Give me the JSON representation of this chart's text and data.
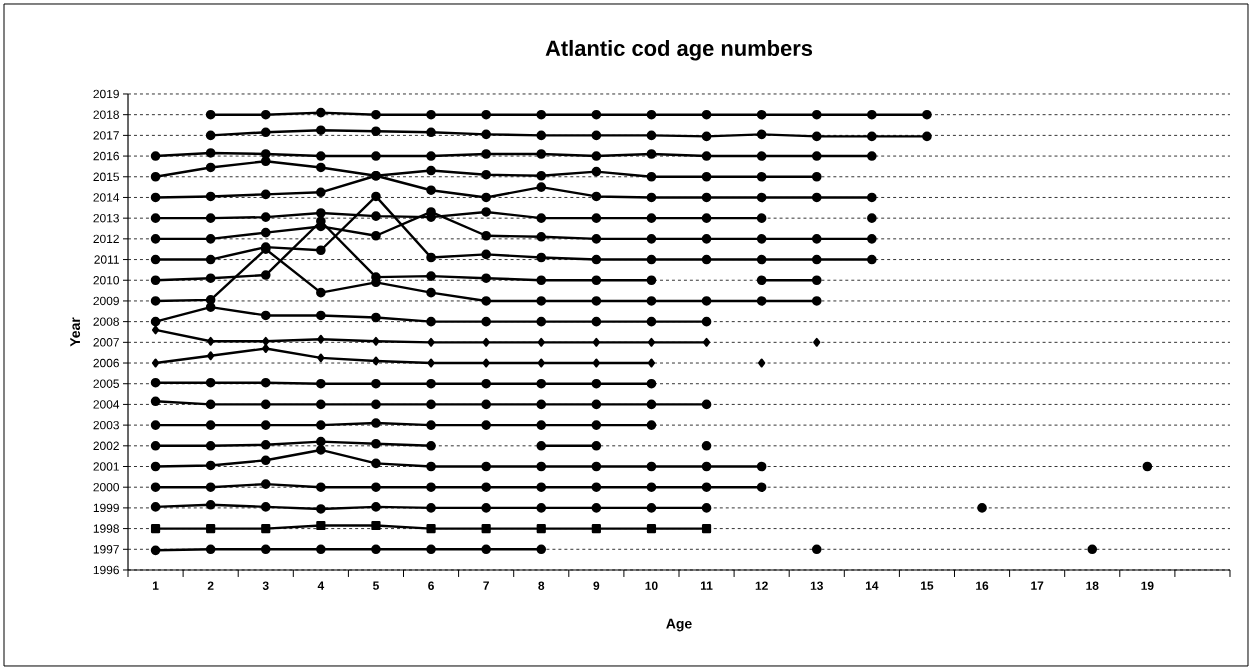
{
  "chart_data": {
    "type": "line",
    "title": "Atlantic cod age numbers",
    "xlabel": "Age",
    "ylabel": "Year",
    "categories": [
      "1",
      "2",
      "3",
      "4",
      "5",
      "6",
      "7",
      "8",
      "9",
      "10",
      "11",
      "12",
      "13",
      "14",
      "15",
      "16",
      "17",
      "18",
      "19",
      null
    ],
    "ylim": [
      1996,
      2019
    ],
    "yticks": [
      1996,
      1997,
      1998,
      1999,
      2000,
      2001,
      2002,
      2003,
      2004,
      2005,
      2006,
      2007,
      2008,
      2009,
      2010,
      2011,
      2012,
      2013,
      2014,
      2015,
      2016,
      2017,
      2018,
      2019
    ],
    "grid": "y",
    "line_style": "solid",
    "series": [
      {
        "color": "#000000",
        "marker": "circle",
        "values": [
          1996.95,
          1997,
          1997,
          1997,
          1997,
          1997,
          1997,
          1997,
          null,
          null,
          null,
          null,
          1997,
          null,
          null,
          null,
          null,
          1997,
          null,
          null
        ]
      },
      {
        "color": "#000000",
        "marker": "square",
        "values": [
          1998,
          1998,
          1998,
          1998.15,
          1998.15,
          1998,
          1998,
          1998,
          1998,
          1998,
          1998,
          null,
          null,
          null,
          null,
          null,
          null,
          null,
          null,
          null
        ]
      },
      {
        "color": "#000000",
        "marker": "circle",
        "values": [
          1999.05,
          1999.15,
          1999.05,
          1998.95,
          1999.05,
          1999,
          1999,
          1999,
          1999,
          1999,
          1999,
          null,
          null,
          null,
          null,
          1999,
          null,
          null,
          null,
          null
        ]
      },
      {
        "color": "#000000",
        "marker": "circle",
        "values": [
          2000,
          2000,
          2000.15,
          2000,
          2000,
          2000,
          2000,
          2000,
          2000,
          2000,
          2000,
          2000,
          null,
          null,
          null,
          null,
          null,
          null,
          null,
          null
        ]
      },
      {
        "color": "#000000",
        "marker": "circle",
        "values": [
          2001,
          2001.05,
          2001.3,
          2001.8,
          2001.15,
          2001,
          2001,
          2001,
          2001,
          2001,
          2001,
          2001,
          null,
          null,
          null,
          null,
          null,
          null,
          2001,
          null
        ]
      },
      {
        "color": "#000000",
        "marker": "circle",
        "values": [
          2002,
          2002,
          2002.05,
          2002.2,
          2002.1,
          2002,
          null,
          2002,
          2002,
          null,
          2002,
          null,
          null,
          null,
          null,
          null,
          null,
          null,
          null,
          null
        ]
      },
      {
        "color": "#000000",
        "marker": "circle",
        "values": [
          2003,
          2003,
          2003,
          2003,
          2003.1,
          2003,
          2003,
          2003,
          2003,
          2003,
          null,
          null,
          null,
          null,
          null,
          null,
          null,
          null,
          null,
          null
        ]
      },
      {
        "color": "#000000",
        "marker": "circle",
        "values": [
          2004.15,
          2004,
          2004,
          2004,
          2004,
          2004,
          2004,
          2004,
          2004,
          2004,
          2004,
          null,
          null,
          null,
          null,
          null,
          null,
          null,
          null,
          null
        ]
      },
      {
        "color": "#000000",
        "marker": "circle",
        "values": [
          2005.05,
          2005.05,
          2005.05,
          2005,
          2005,
          2005,
          2005,
          2005,
          2005,
          2005,
          null,
          null,
          null,
          null,
          null,
          null,
          null,
          null,
          null,
          null
        ]
      },
      {
        "color": "#000000",
        "marker": "diamond",
        "values": [
          2006,
          2006.35,
          2006.7,
          2006.25,
          2006.1,
          2006,
          2006,
          2006,
          2006,
          2006,
          null,
          2006,
          null,
          null,
          null,
          null,
          null,
          null,
          null,
          null
        ]
      },
      {
        "color": "#000000",
        "marker": "diamond",
        "values": [
          2007.6,
          2007.05,
          2007.05,
          2007.15,
          2007.05,
          2007,
          2007,
          2007,
          2007,
          2007,
          2007,
          null,
          2007,
          null,
          null,
          null,
          null,
          null,
          null,
          null
        ]
      },
      {
        "color": "#000000",
        "marker": "circle",
        "values": [
          2008,
          2008.7,
          2008.3,
          2008.3,
          2008.2,
          2008,
          2008,
          2008,
          2008,
          2008,
          2008,
          null,
          null,
          null,
          null,
          null,
          null,
          null,
          null,
          null
        ]
      },
      {
        "color": "#000000",
        "marker": "circle",
        "values": [
          2009,
          2009.05,
          2011.5,
          2009.4,
          2009.9,
          2009.4,
          2009,
          2009,
          2009,
          2009,
          2009,
          2009,
          2009,
          null,
          null,
          null,
          null,
          null,
          null,
          null
        ]
      },
      {
        "color": "#000000",
        "marker": "circle",
        "values": [
          2010,
          2010.1,
          2010.25,
          2012.85,
          2010.15,
          2010.2,
          2010.1,
          2010,
          2010,
          2010,
          null,
          2010,
          2010,
          null,
          null,
          null,
          null,
          null,
          null,
          null
        ]
      },
      {
        "color": "#000000",
        "marker": "circle",
        "values": [
          2011,
          2011,
          2011.6,
          2011.45,
          2014.05,
          2011.1,
          2011.25,
          2011.1,
          2011,
          2011,
          2011,
          2011,
          2011,
          2011,
          null,
          null,
          null,
          null,
          null,
          null
        ]
      },
      {
        "color": "#000000",
        "marker": "circle",
        "values": [
          2012,
          2012,
          2012.3,
          2012.6,
          2012.15,
          2013.3,
          2012.15,
          2012.1,
          2012,
          2012,
          2012,
          2012,
          2012,
          2012,
          null,
          null,
          null,
          null,
          null,
          null
        ]
      },
      {
        "color": "#000000",
        "marker": "circle",
        "values": [
          2013,
          2013,
          2013.05,
          2013.25,
          2013.1,
          2013.05,
          2013.3,
          2013,
          2013,
          2013,
          2013,
          2013,
          null,
          2013,
          null,
          null,
          null,
          null,
          null,
          null
        ]
      },
      {
        "color": "#000000",
        "marker": "circle",
        "values": [
          2014,
          2014.05,
          2014.15,
          2014.25,
          2015.05,
          2014.35,
          2014,
          2014.5,
          2014.05,
          2014,
          2014,
          2014,
          2014,
          2014,
          null,
          null,
          null,
          null,
          null,
          null
        ]
      },
      {
        "color": "#000000",
        "marker": "circle",
        "values": [
          2015,
          2015.45,
          2015.75,
          2015.45,
          2015.05,
          2015.3,
          2015.1,
          2015.05,
          2015.25,
          2015,
          2015,
          2015,
          2015,
          null,
          null,
          null,
          null,
          null,
          null,
          null
        ]
      },
      {
        "color": "#000000",
        "marker": "circle",
        "values": [
          2016,
          2016.15,
          2016.1,
          2016,
          2016,
          2016,
          2016.1,
          2016.1,
          2016,
          2016.1,
          2016,
          2016,
          2016,
          2016,
          null,
          null,
          null,
          null,
          null,
          null
        ]
      },
      {
        "color": "#000000",
        "marker": "circle",
        "values": [
          null,
          2017,
          2017.15,
          2017.25,
          2017.2,
          2017.15,
          2017.05,
          2017,
          2017,
          2017,
          2016.95,
          2017.05,
          2016.95,
          2016.95,
          2016.95,
          null,
          null,
          null,
          null,
          null
        ]
      },
      {
        "color": "#000000",
        "marker": "circle",
        "values": [
          null,
          2018,
          2018,
          2018.1,
          2018,
          2018,
          2018,
          2018,
          2018,
          2018,
          2018,
          2018,
          2018,
          2018,
          2018,
          null,
          null,
          null,
          null,
          null
        ]
      }
    ]
  }
}
